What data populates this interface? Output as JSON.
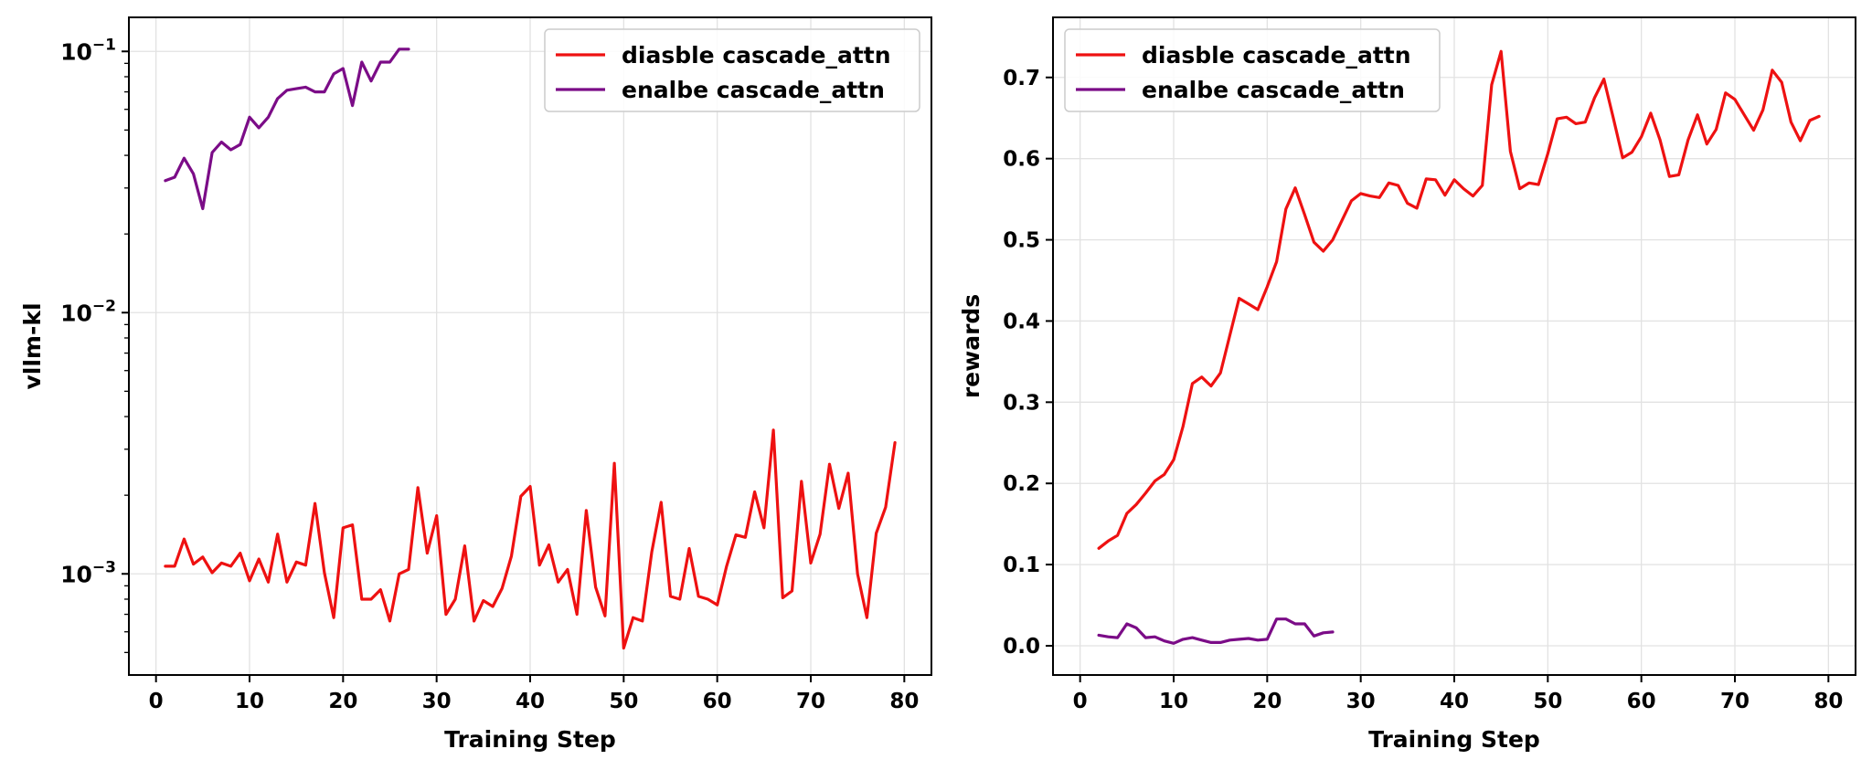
{
  "chart_data": [
    {
      "type": "line",
      "yscale": "log",
      "xlabel": "Training Step",
      "ylabel": "vllm-kl",
      "xlim": [
        -2.9,
        82.9
      ],
      "ylim": [
        0.00041,
        0.135
      ],
      "xticks": [
        0,
        10,
        20,
        30,
        40,
        50,
        60,
        70,
        80
      ],
      "yticks": [
        {
          "value": 0.1,
          "base": "10",
          "exp": "−1"
        },
        {
          "value": 0.01,
          "base": "10",
          "exp": "−2"
        },
        {
          "value": 0.001,
          "base": "10",
          "exp": "−3"
        }
      ],
      "grid": true,
      "legend_position": "top-right",
      "series": [
        {
          "name": "diasble cascade_attn",
          "color": "#ee1111",
          "x": [
            1,
            2,
            3,
            4,
            5,
            6,
            7,
            8,
            9,
            10,
            11,
            12,
            13,
            14,
            15,
            16,
            17,
            18,
            19,
            20,
            21,
            22,
            23,
            24,
            25,
            26,
            27,
            28,
            29,
            30,
            31,
            32,
            33,
            34,
            35,
            36,
            37,
            38,
            39,
            40,
            41,
            42,
            43,
            44,
            45,
            46,
            47,
            48,
            49,
            50,
            51,
            52,
            53,
            54,
            55,
            56,
            57,
            58,
            59,
            60,
            61,
            62,
            63,
            64,
            65,
            66,
            67,
            68,
            69,
            70,
            71,
            72,
            73,
            74,
            75,
            76,
            77,
            78,
            79
          ],
          "values": [
            0.00107,
            0.00107,
            0.00136,
            0.00109,
            0.00116,
            0.00101,
            0.0011,
            0.00107,
            0.0012,
            0.00094,
            0.00114,
            0.00093,
            0.00142,
            0.00093,
            0.00111,
            0.00108,
            0.00186,
            0.00101,
            0.00068,
            0.0015,
            0.00154,
            0.0008,
            0.0008,
            0.00087,
            0.00066,
            0.001,
            0.00104,
            0.00214,
            0.0012,
            0.00167,
            0.0007,
            0.0008,
            0.00128,
            0.00066,
            0.00079,
            0.00075,
            0.00088,
            0.00117,
            0.00198,
            0.00216,
            0.00108,
            0.00129,
            0.00093,
            0.00104,
            0.0007,
            0.00175,
            0.00089,
            0.00069,
            0.00265,
            0.00052,
            0.00068,
            0.00066,
            0.00121,
            0.00188,
            0.00082,
            0.0008,
            0.00125,
            0.00082,
            0.0008,
            0.00076,
            0.00107,
            0.00141,
            0.00138,
            0.00206,
            0.0015,
            0.00355,
            0.00081,
            0.00086,
            0.00226,
            0.0011,
            0.00142,
            0.00263,
            0.00178,
            0.00243,
            0.001,
            0.00068,
            0.00143,
            0.0018,
            0.00318
          ]
        },
        {
          "name": "enalbe cascade_attn",
          "color": "#7b0c87",
          "x": [
            1,
            2,
            3,
            4,
            5,
            6,
            7,
            8,
            9,
            10,
            11,
            12,
            13,
            14,
            15,
            16,
            17,
            18,
            19,
            20,
            21,
            22,
            23,
            24,
            25,
            26,
            27
          ],
          "values": [
            0.032,
            0.033,
            0.039,
            0.034,
            0.025,
            0.041,
            0.045,
            0.042,
            0.044,
            0.056,
            0.051,
            0.056,
            0.066,
            0.071,
            0.072,
            0.073,
            0.07,
            0.07,
            0.082,
            0.086,
            0.062,
            0.091,
            0.077,
            0.091,
            0.091,
            0.102,
            0.102
          ]
        }
      ]
    },
    {
      "type": "line",
      "yscale": "linear",
      "xlabel": "Training Step",
      "ylabel": "rewards",
      "xlim": [
        -2.9,
        82.9
      ],
      "ylim": [
        -0.036,
        0.774
      ],
      "xticks": [
        0,
        10,
        20,
        30,
        40,
        50,
        60,
        70,
        80
      ],
      "yticks": [
        "0.0",
        "0.1",
        "0.2",
        "0.3",
        "0.4",
        "0.5",
        "0.6",
        "0.7"
      ],
      "grid": true,
      "legend_position": "top-left",
      "series": [
        {
          "name": "diasble cascade_attn",
          "color": "#ee1111",
          "x": [
            2,
            3,
            4,
            5,
            6,
            7,
            8,
            9,
            10,
            11,
            12,
            13,
            14,
            15,
            16,
            17,
            18,
            19,
            20,
            21,
            22,
            23,
            24,
            25,
            26,
            27,
            28,
            29,
            30,
            31,
            32,
            33,
            34,
            35,
            36,
            37,
            38,
            39,
            40,
            41,
            42,
            43,
            44,
            45,
            46,
            47,
            48,
            49,
            50,
            51,
            52,
            53,
            54,
            55,
            56,
            57,
            58,
            59,
            60,
            61,
            62,
            63,
            64,
            65,
            66,
            67,
            68,
            69,
            70,
            71,
            72,
            73,
            74,
            75,
            76,
            77,
            78,
            79
          ],
          "values": [
            0.12,
            0.129,
            0.136,
            0.163,
            0.174,
            0.188,
            0.203,
            0.211,
            0.229,
            0.27,
            0.323,
            0.331,
            0.32,
            0.336,
            0.382,
            0.428,
            0.421,
            0.414,
            0.442,
            0.473,
            0.538,
            0.564,
            0.531,
            0.497,
            0.486,
            0.5,
            0.524,
            0.548,
            0.557,
            0.554,
            0.552,
            0.57,
            0.567,
            0.545,
            0.539,
            0.575,
            0.574,
            0.555,
            0.574,
            0.563,
            0.554,
            0.567,
            0.691,
            0.732,
            0.609,
            0.563,
            0.57,
            0.568,
            0.606,
            0.649,
            0.651,
            0.643,
            0.645,
            0.675,
            0.698,
            0.65,
            0.601,
            0.608,
            0.627,
            0.656,
            0.623,
            0.578,
            0.58,
            0.623,
            0.654,
            0.618,
            0.636,
            0.681,
            0.673,
            0.654,
            0.635,
            0.66,
            0.709,
            0.694,
            0.645,
            0.622,
            0.647,
            0.652
          ]
        },
        {
          "name": "enalbe cascade_attn",
          "color": "#7b0c87",
          "x": [
            2,
            3,
            4,
            5,
            6,
            7,
            8,
            9,
            10,
            11,
            12,
            13,
            14,
            15,
            16,
            17,
            18,
            19,
            20,
            21,
            22,
            23,
            24,
            25,
            26,
            27
          ],
          "values": [
            0.013,
            0.011,
            0.01,
            0.027,
            0.022,
            0.01,
            0.011,
            0.006,
            0.003,
            0.008,
            0.01,
            0.007,
            0.004,
            0.004,
            0.007,
            0.008,
            0.009,
            0.007,
            0.008,
            0.033,
            0.033,
            0.027,
            0.027,
            0.012,
            0.016,
            0.017
          ]
        }
      ]
    }
  ]
}
